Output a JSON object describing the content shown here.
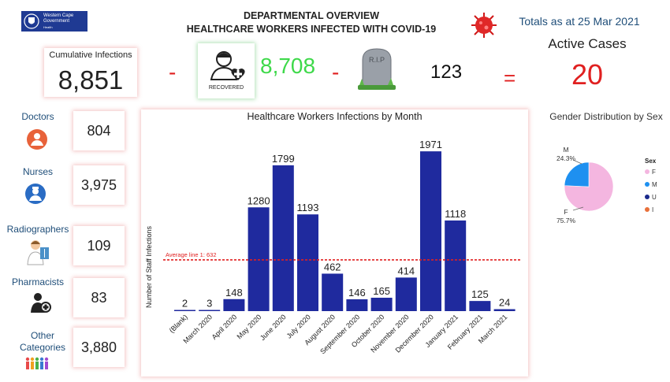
{
  "header": {
    "logo_line1": "Western Cape",
    "logo_line2": "Government",
    "logo_line3": "Health",
    "title_line1": "DEPARTMENTAL OVERVIEW",
    "title_line2": "HEALTHCARE WORKERS INFECTED WITH COVID-19",
    "totals_as_at": "Totals as at 25 Mar 2021"
  },
  "summary": {
    "cumulative_label": "Cumulative Infections",
    "cumulative_value": "8,851",
    "minus1": "-",
    "recovered_icon_label": "RECOVERED",
    "recovered_value": "8,708",
    "minus2": "-",
    "grave_text": "R.I.P",
    "deaths_value": "123",
    "equals": "=",
    "active_label": "Active Cases",
    "active_value": "20"
  },
  "categories": [
    {
      "label": "Doctors",
      "value": "804",
      "icon": "doctor-icon"
    },
    {
      "label": "Nurses",
      "value": "3,975",
      "icon": "nurse-icon"
    },
    {
      "label": "Radiographers",
      "value": "109",
      "icon": "radiographer-icon"
    },
    {
      "label": "Pharmacists",
      "value": "83",
      "icon": "pharmacist-icon"
    },
    {
      "label": "Other Categories",
      "value": "3,880",
      "icon": "people-icon"
    }
  ],
  "chart_data": [
    {
      "type": "bar",
      "title": "Healthcare Workers Infections by Month",
      "ylabel": "Number of Staff Infections",
      "xlabel": "",
      "categories": [
        "(Blank)",
        "March 2020",
        "April 2020",
        "May 2020",
        "June 2020",
        "July 2020",
        "August 2020",
        "September 2020",
        "October 2020",
        "November 2020",
        "December 2020",
        "January 2021",
        "February 2021",
        "March 2021"
      ],
      "values": [
        2,
        3,
        148,
        1280,
        1799,
        1193,
        462,
        146,
        165,
        414,
        1971,
        1118,
        125,
        24
      ],
      "bar_color": "#1f2a9e",
      "average_line": {
        "label": "Average line 1: 632",
        "value": 632,
        "color": "#e02020"
      },
      "ylim": [
        0,
        2050
      ],
      "grid": false
    },
    {
      "type": "pie",
      "title": "Gender Distribution by Sex",
      "legend_title": "Sex",
      "legend_position": "right",
      "slices": [
        {
          "label": "F",
          "value": 75.7,
          "display": "75.7%",
          "color": "#f4b6e0"
        },
        {
          "label": "M",
          "value": 24.3,
          "display": "24.3%",
          "color": "#1e90f0"
        },
        {
          "label": "U",
          "value": 0,
          "color": "#1a2a8c"
        },
        {
          "label": "I",
          "value": 0,
          "color": "#e8703a"
        }
      ]
    }
  ]
}
